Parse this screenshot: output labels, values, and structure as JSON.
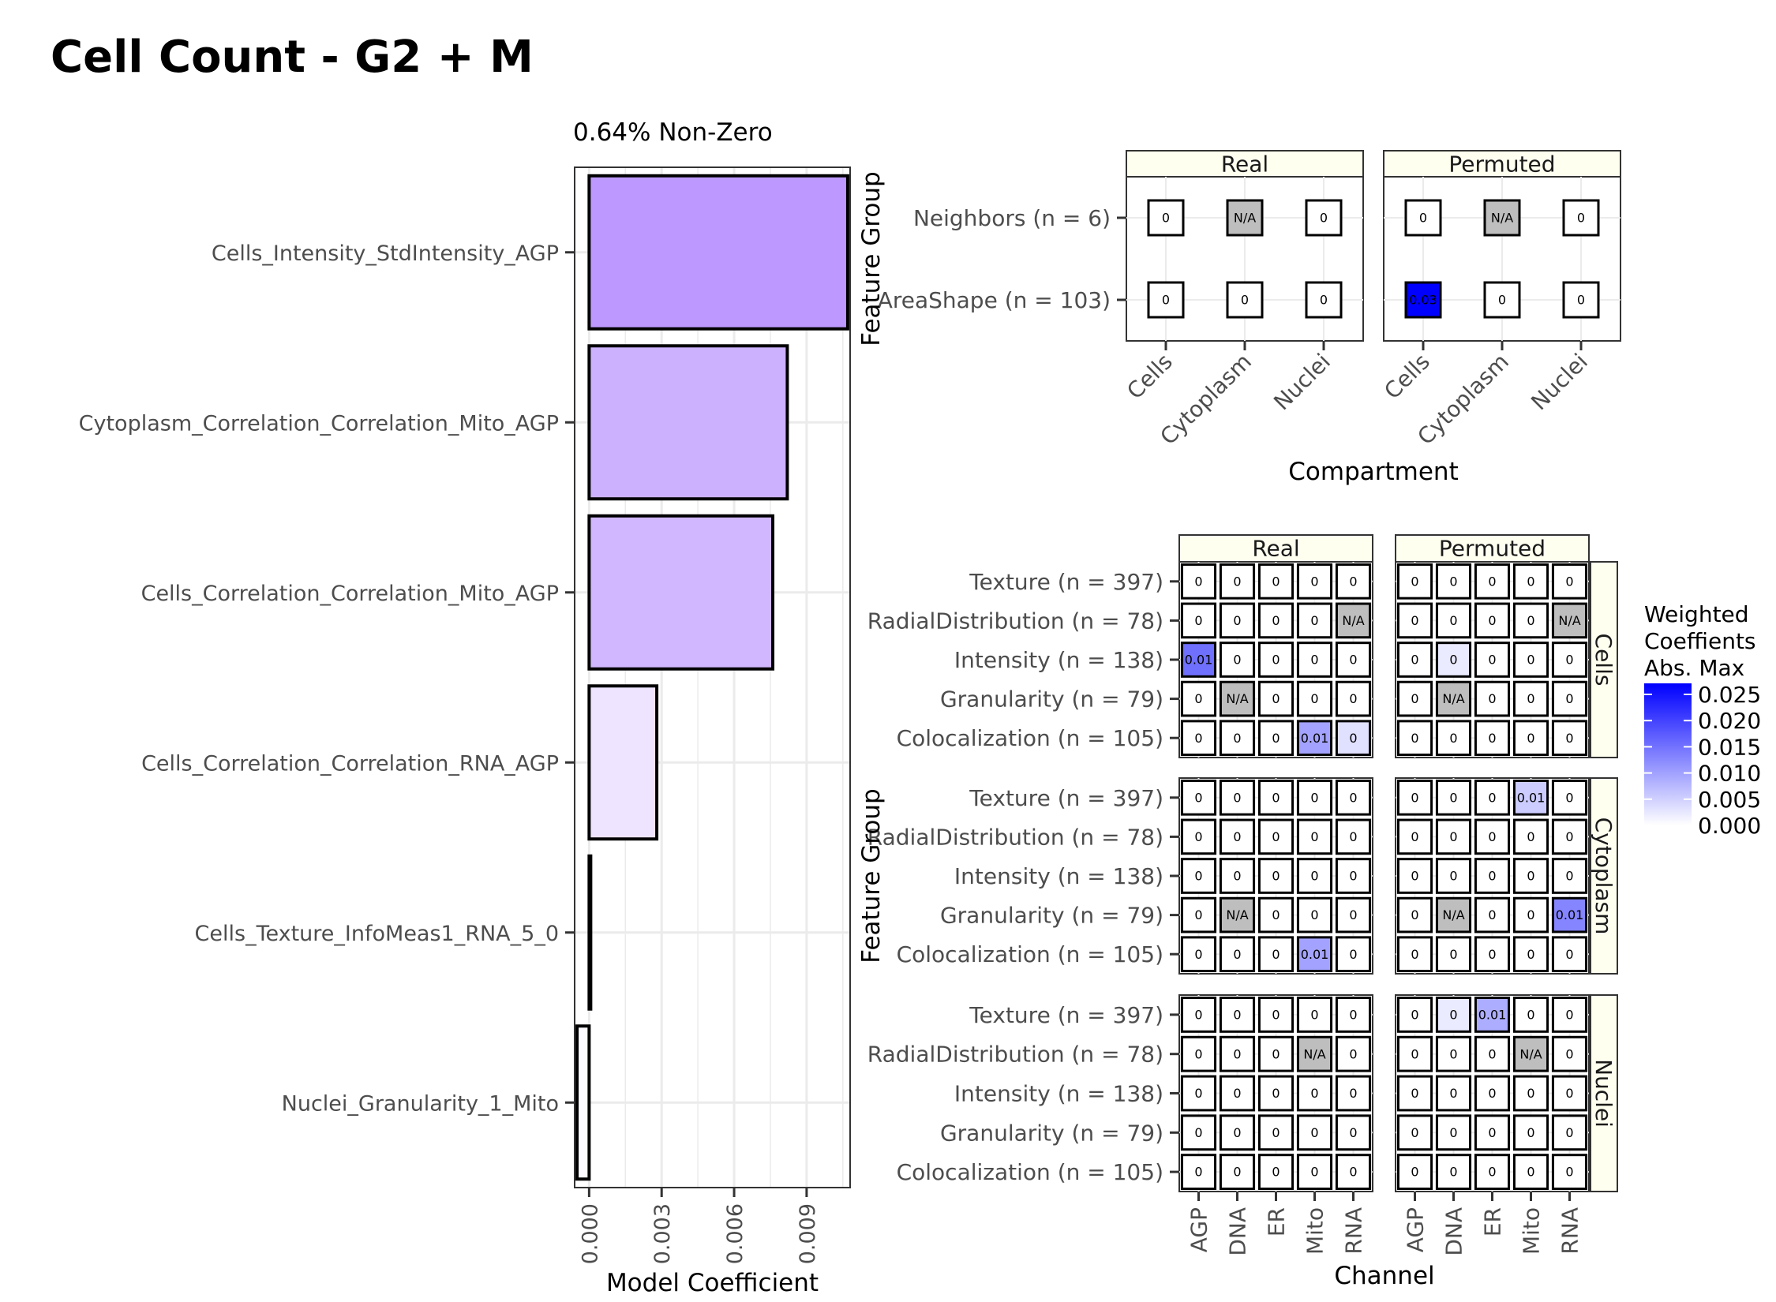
{
  "title": "Cell Count - G2 + M",
  "chart_data": [
    {
      "type": "bar",
      "orientation": "horizontal",
      "subtitle": "0.64% Non-Zero",
      "xlabel": "Model Coefficient",
      "ylabel": "",
      "xlim": [
        -0.0006,
        0.0108
      ],
      "xticks": [
        "0.000",
        "0.003",
        "0.006",
        "0.009"
      ],
      "xtick_values": [
        0.0,
        0.003,
        0.006,
        0.009
      ],
      "categories": [
        "Cells_Intensity_StdIntensity_AGP",
        "Cytoplasm_Correlation_Correlation_Mito_AGP",
        "Cells_Correlation_Correlation_Mito_AGP",
        "Cells_Correlation_Correlation_RNA_AGP",
        "Cells_Texture_InfoMeas1_RNA_5_0",
        "Nuclei_Granularity_1_Mito"
      ],
      "values": [
        0.0107,
        0.0082,
        0.0076,
        0.0028,
        0.0,
        -0.0005
      ],
      "grid": true
    },
    {
      "type": "heatmap",
      "facets": [
        "Real",
        "Permuted"
      ],
      "xlabel": "Compartment",
      "ylabel": "Feature Group",
      "x": [
        "Cells",
        "Cytoplasm",
        "Nuclei"
      ],
      "y": [
        "Neighbors (n = 6)",
        "AreaShape (n = 103)"
      ],
      "values": {
        "Real": [
          [
            "0",
            "N/A",
            "0"
          ],
          [
            "0",
            "0",
            "0"
          ]
        ],
        "Permuted": [
          [
            "0",
            "N/A",
            "0"
          ],
          [
            "0.03",
            "0",
            "0"
          ]
        ]
      }
    },
    {
      "type": "heatmap",
      "facets": [
        "Real",
        "Permuted"
      ],
      "row_facets": [
        "Cells",
        "Cytoplasm",
        "Nuclei"
      ],
      "xlabel": "Channel",
      "ylabel": "Feature Group",
      "x": [
        "AGP",
        "DNA",
        "ER",
        "Mito",
        "RNA"
      ],
      "y": [
        "Texture (n = 397)",
        "RadialDistribution (n = 78)",
        "Intensity (n = 138)",
        "Granularity (n = 79)",
        "Colocalization (n = 105)"
      ],
      "values": {
        "Cells": {
          "Real": [
            [
              "0",
              "0",
              "0",
              "0",
              "0"
            ],
            [
              "0",
              "0",
              "0",
              "0",
              "N/A"
            ],
            [
              "0.01",
              "0",
              "0",
              "0",
              "0"
            ],
            [
              "0",
              "N/A",
              "0",
              "0",
              "0"
            ],
            [
              "0",
              "0",
              "0",
              "0.01",
              "0"
            ]
          ],
          "Permuted": [
            [
              "0",
              "0",
              "0",
              "0",
              "0"
            ],
            [
              "0",
              "0",
              "0",
              "0",
              "N/A"
            ],
            [
              "0",
              "0",
              "0",
              "0",
              "0"
            ],
            [
              "0",
              "N/A",
              "0",
              "0",
              "0"
            ],
            [
              "0",
              "0",
              "0",
              "0",
              "0"
            ]
          ]
        },
        "Cytoplasm": {
          "Real": [
            [
              "0",
              "0",
              "0",
              "0",
              "0"
            ],
            [
              "0",
              "0",
              "0",
              "0",
              "0"
            ],
            [
              "0",
              "0",
              "0",
              "0",
              "0"
            ],
            [
              "0",
              "N/A",
              "0",
              "0",
              "0"
            ],
            [
              "0",
              "0",
              "0",
              "0.01",
              "0"
            ]
          ],
          "Permuted": [
            [
              "0",
              "0",
              "0",
              "0.01",
              "0"
            ],
            [
              "0",
              "0",
              "0",
              "0",
              "0"
            ],
            [
              "0",
              "0",
              "0",
              "0",
              "0"
            ],
            [
              "0",
              "N/A",
              "0",
              "0",
              "0.01"
            ],
            [
              "0",
              "0",
              "0",
              "0",
              "0"
            ]
          ]
        },
        "Nuclei": {
          "Real": [
            [
              "0",
              "0",
              "0",
              "0",
              "0"
            ],
            [
              "0",
              "0",
              "0",
              "N/A",
              "0"
            ],
            [
              "0",
              "0",
              "0",
              "0",
              "0"
            ],
            [
              "0",
              "0",
              "0",
              "0",
              "0"
            ],
            [
              "0",
              "0",
              "0",
              "0",
              "0"
            ]
          ],
          "Permuted": [
            [
              "0",
              "0",
              "0.01",
              "0",
              "0"
            ],
            [
              "0",
              "0",
              "0",
              "N/A",
              "0"
            ],
            [
              "0",
              "0",
              "0",
              "0",
              "0"
            ],
            [
              "0",
              "0",
              "0",
              "0",
              "0"
            ],
            [
              "0",
              "0",
              "0",
              "0",
              "0"
            ]
          ]
        }
      },
      "cell_intensity": {
        "Cells": {
          "Real": [
            [
              0,
              0,
              0,
              0,
              0
            ],
            [
              0,
              0,
              0,
              0,
              null
            ],
            [
              0.014,
              0,
              0,
              0,
              0
            ],
            [
              0,
              null,
              0,
              0,
              0
            ],
            [
              0,
              0,
              0,
              0.009,
              0.003
            ]
          ],
          "Permuted": [
            [
              0,
              0,
              0,
              0,
              0
            ],
            [
              0,
              0,
              0,
              0,
              null
            ],
            [
              0,
              0.002,
              0,
              0,
              0
            ],
            [
              0,
              null,
              0,
              0,
              0
            ],
            [
              0,
              0,
              0,
              0,
              0
            ]
          ]
        },
        "Cytoplasm": {
          "Real": [
            [
              0,
              0,
              0,
              0,
              0
            ],
            [
              0,
              0,
              0,
              0,
              0
            ],
            [
              0,
              0,
              0,
              0,
              0
            ],
            [
              0,
              null,
              0,
              0,
              0
            ],
            [
              0,
              0,
              0,
              0.009,
              0
            ]
          ],
          "Permuted": [
            [
              0,
              0,
              0,
              0.005,
              0
            ],
            [
              0,
              0,
              0,
              0,
              0
            ],
            [
              0,
              0,
              0,
              0,
              0
            ],
            [
              0,
              null,
              0,
              0,
              0.012
            ],
            [
              0,
              0,
              0,
              0,
              0
            ]
          ]
        },
        "Nuclei": {
          "Real": [
            [
              0,
              0,
              0,
              0,
              0
            ],
            [
              0,
              0,
              0,
              null,
              0
            ],
            [
              0,
              0,
              0,
              0,
              0
            ],
            [
              0,
              0,
              0,
              0,
              0
            ],
            [
              0,
              0,
              0,
              0,
              0
            ]
          ],
          "Permuted": [
            [
              0,
              0.002,
              0.008,
              0,
              0
            ],
            [
              0,
              0,
              0,
              null,
              0
            ],
            [
              0,
              0,
              0,
              0,
              0
            ],
            [
              0,
              0,
              0,
              0,
              0
            ],
            [
              0,
              0,
              0,
              0,
              0
            ]
          ]
        }
      },
      "compartment_intensity": {
        "Real": [
          [
            0,
            null,
            0
          ],
          [
            0,
            0,
            0
          ]
        ],
        "Permuted": [
          [
            0,
            null,
            0
          ],
          [
            0.03,
            0,
            0
          ]
        ]
      }
    }
  ],
  "legend": {
    "title_lines": [
      "Weighted",
      "Coeffients",
      "Abs. Max"
    ],
    "labels": [
      "0.025",
      "0.020",
      "0.015",
      "0.010",
      "0.005",
      "0.000"
    ],
    "values": [
      0.025,
      0.02,
      0.015,
      0.01,
      0.005,
      0.0
    ],
    "color_low": "#ffffff",
    "color_high": "#0000ff"
  },
  "colors": {
    "bar_fill_high": "#bd99ff",
    "na_fill": "#bebebe",
    "strip_fill": "#fffff0",
    "grid": "#ebebeb"
  }
}
